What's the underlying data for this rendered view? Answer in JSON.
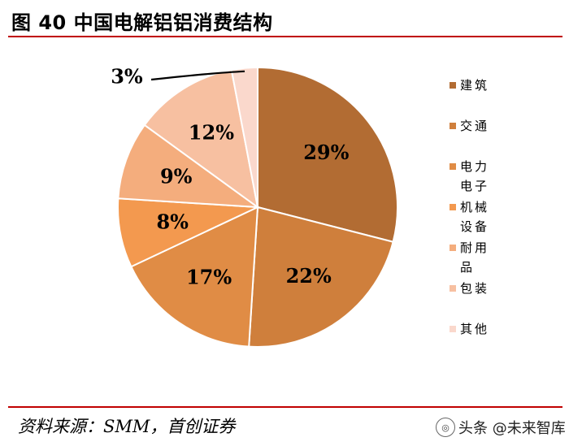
{
  "header": {
    "title": "图 40 中国电解铝铝消费结构"
  },
  "footer": {
    "source": "资料来源：SMM，首创证券",
    "watermark": "头条 @未来智库"
  },
  "chart_data": {
    "type": "pie",
    "title": "",
    "slices": [
      {
        "name": "建筑",
        "value": 29,
        "label": "29%",
        "color": "#b26c33"
      },
      {
        "name": "交通",
        "value": 22,
        "label": "22%",
        "color": "#cf7f3c"
      },
      {
        "name": "电力电子",
        "value": 17,
        "label": "17%",
        "color": "#e08c45"
      },
      {
        "name": "机械设备",
        "value": 8,
        "label": "8%",
        "color": "#f3994f"
      },
      {
        "name": "耐用品",
        "value": 9,
        "label": "9%",
        "color": "#f4ad7d"
      },
      {
        "name": "包装",
        "value": 12,
        "label": "12%",
        "color": "#f7c0a1"
      },
      {
        "name": "其他",
        "value": 3,
        "label": "3%",
        "color": "#fad8cc"
      }
    ],
    "legend_position": "right"
  }
}
